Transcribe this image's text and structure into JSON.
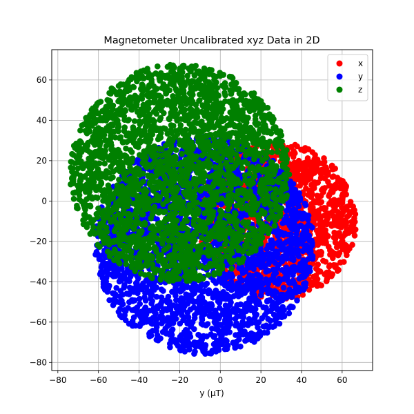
{
  "chart_data": {
    "type": "scatter",
    "title": "Magnetometer Uncalibrated xyz Data in 2D",
    "xlabel": "y (μT)",
    "ylabel": "",
    "xlim": [
      -83,
      75
    ],
    "ylim": [
      -84,
      75
    ],
    "xticks": [
      -80,
      -60,
      -40,
      -20,
      0,
      20,
      40,
      60
    ],
    "yticks": [
      -80,
      -60,
      -40,
      -20,
      0,
      20,
      40,
      60
    ],
    "xtick_labels": [
      "−80",
      "−60",
      "−40",
      "−20",
      "0",
      "20",
      "40",
      "60"
    ],
    "ytick_labels": [
      "−80",
      "−60",
      "−40",
      "−20",
      "0",
      "20",
      "40",
      "60"
    ],
    "grid": true,
    "legend_position": "top-right",
    "series": [
      {
        "name": "x",
        "color": "#ff0000",
        "center": [
          28,
          -10
        ],
        "radius": 39
      },
      {
        "name": "y",
        "color": "#0000ff",
        "center": [
          -8,
          -22
        ],
        "radius": 54
      },
      {
        "name": "z",
        "color": "#008000",
        "center": [
          -20,
          14
        ],
        "radius": 54
      }
    ]
  }
}
